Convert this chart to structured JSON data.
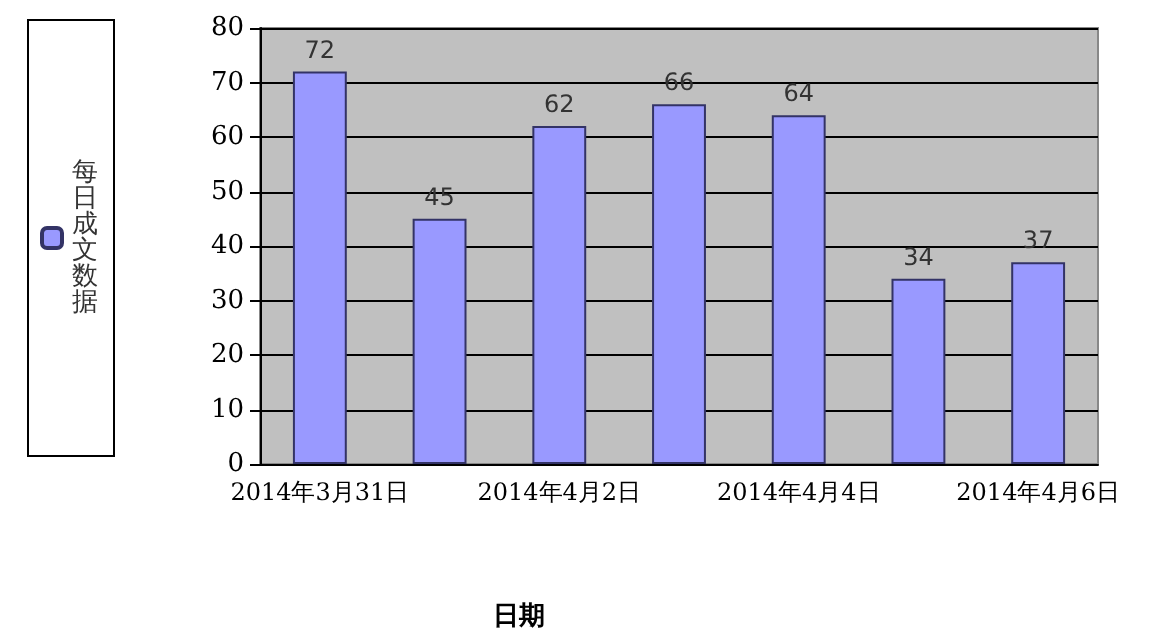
{
  "chart_data": {
    "type": "bar",
    "xlabel": "日期",
    "categories": [
      "2014年3月31日",
      null,
      "2014年4月2日",
      null,
      "2014年4月4日",
      null,
      "2014年4月6日"
    ],
    "series": [
      {
        "name": "每日成文数据",
        "color": "#9999ff",
        "values": [
          72,
          45,
          62,
          66,
          64,
          34,
          37
        ]
      }
    ],
    "ylim": [
      0,
      80
    ],
    "yticks": [
      0,
      10,
      20,
      30,
      40,
      50,
      60,
      70,
      80
    ],
    "grid": "y",
    "legend": "left",
    "data_labels": true
  }
}
